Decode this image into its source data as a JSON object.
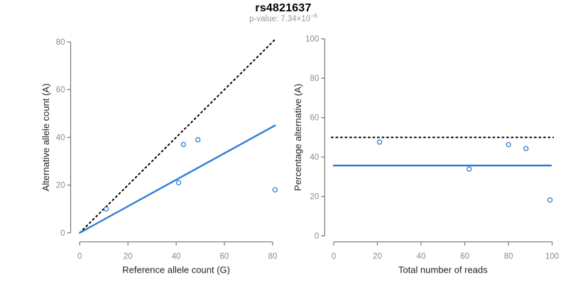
{
  "figure": {
    "title": "rs4821637",
    "subtitle_prefix": "p-value: 7.34×10",
    "subtitle_exponent": "−8"
  },
  "colors": {
    "accent_blue": "#2d7dd7",
    "dotted_black": "#000000",
    "axis_line": "#757575",
    "tick_label": "#8a8a8a",
    "axis_title": "#1f1f1f",
    "subtitle_gray": "#9a9a9a"
  },
  "chart_data": [
    {
      "type": "scatter",
      "panel": "left",
      "xlabel": "Reference allele count (G)",
      "ylabel": "Alternative allele count (A)",
      "xlim": [
        0,
        80
      ],
      "ylim": [
        0,
        80
      ],
      "xticks": [
        0,
        20,
        40,
        60,
        80
      ],
      "yticks": [
        0,
        20,
        40,
        60,
        80
      ],
      "grid": false,
      "legend": "none",
      "points": [
        [
          11,
          10
        ],
        [
          41,
          21
        ],
        [
          43,
          37
        ],
        [
          49,
          39
        ],
        [
          81,
          18
        ]
      ],
      "lines": [
        {
          "name": "identity-dotted-line",
          "style": "dotted",
          "color": "#000000",
          "from": [
            0,
            0
          ],
          "to": [
            81,
            81
          ]
        },
        {
          "name": "fitted-ratio-line",
          "style": "solid",
          "color": "#2d7dd7",
          "from": [
            0,
            0
          ],
          "to": [
            81,
            45
          ]
        }
      ]
    },
    {
      "type": "scatter",
      "panel": "right",
      "xlabel": "Total number of reads",
      "ylabel": "Percentage alternative (A)",
      "xlim": [
        0,
        100
      ],
      "ylim": [
        0,
        100
      ],
      "xticks": [
        0,
        20,
        40,
        60,
        80,
        100
      ],
      "yticks": [
        0,
        20,
        40,
        60,
        80,
        100
      ],
      "grid": false,
      "legend": "none",
      "points": [
        [
          21,
          47.6
        ],
        [
          62,
          33.9
        ],
        [
          80,
          46.3
        ],
        [
          88,
          44.3
        ],
        [
          99,
          18.2
        ]
      ],
      "lines": [
        {
          "name": "fifty-percent-dotted-line",
          "style": "dotted",
          "color": "#000000",
          "from": [
            -1,
            50
          ],
          "to": [
            100.5,
            50
          ]
        },
        {
          "name": "mean-percentage-line",
          "style": "solid",
          "color": "#2d7dd7",
          "from": [
            0,
            35.7
          ],
          "to": [
            99.5,
            35.7
          ]
        }
      ]
    }
  ]
}
